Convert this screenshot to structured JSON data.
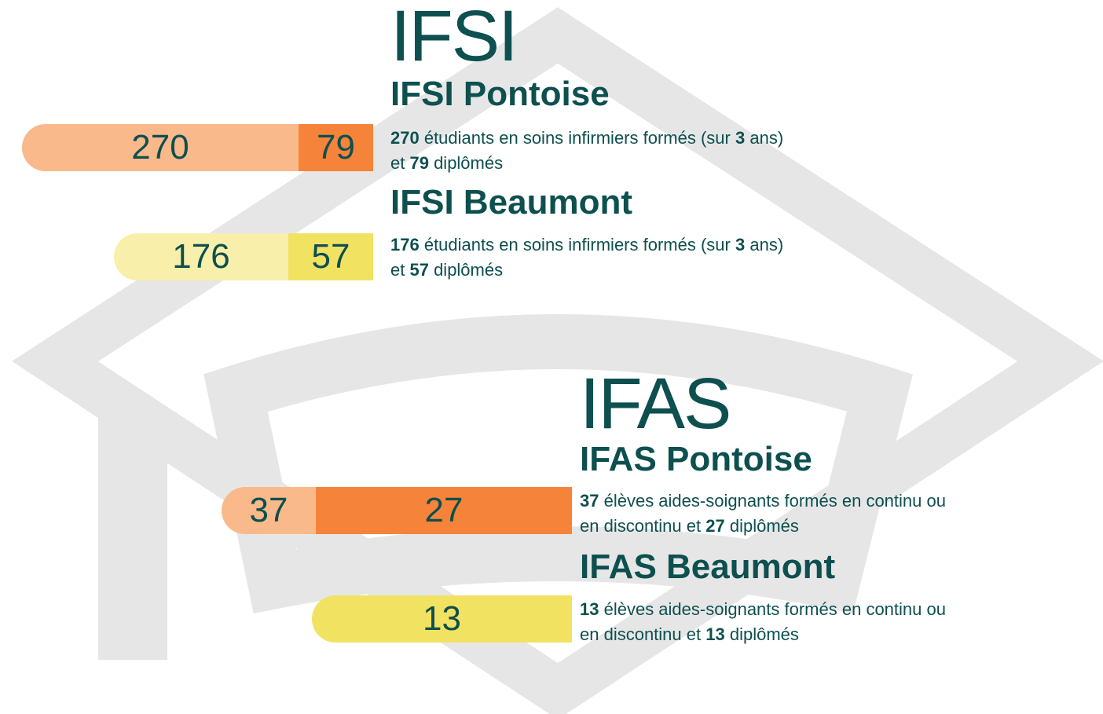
{
  "sections": [
    {
      "title": "IFSI",
      "programs": [
        {
          "name": "IFSI Pontoise",
          "segments": [
            {
              "value": 270,
              "color": "#f9b98b"
            },
            {
              "value": 79,
              "color": "#f5843a"
            }
          ],
          "lines": [
            [
              {
                "text": "270",
                "bold": true
              },
              {
                "text": " étudiants en soins infirmiers formés (sur "
              },
              {
                "text": "3",
                "bold": true
              },
              {
                "text": " ans)"
              }
            ],
            [
              {
                "text": "et "
              },
              {
                "text": "79",
                "bold": true
              },
              {
                "text": " diplômés"
              }
            ]
          ]
        },
        {
          "name": "IFSI Beaumont",
          "segments": [
            {
              "value": 176,
              "color": "#f8efaa"
            },
            {
              "value": 57,
              "color": "#f2e261"
            }
          ],
          "lines": [
            [
              {
                "text": "176",
                "bold": true
              },
              {
                "text": " étudiants en soins infirmiers formés (sur "
              },
              {
                "text": "3",
                "bold": true
              },
              {
                "text": " ans)"
              }
            ],
            [
              {
                "text": "et "
              },
              {
                "text": "57",
                "bold": true
              },
              {
                "text": " diplômés"
              }
            ]
          ]
        }
      ]
    },
    {
      "title": "IFAS",
      "programs": [
        {
          "name": "IFAS Pontoise",
          "segments": [
            {
              "value": 37,
              "color": "#f9b98b"
            },
            {
              "value": 27,
              "color": "#f5843a"
            }
          ],
          "lines": [
            [
              {
                "text": "37",
                "bold": true
              },
              {
                "text": " élèves aides-soignants formés en continu ou"
              }
            ],
            [
              {
                "text": "en discontinu et "
              },
              {
                "text": "27",
                "bold": true
              },
              {
                "text": " diplômés"
              }
            ]
          ]
        },
        {
          "name": "IFAS Beaumont",
          "segments": [
            {
              "value": 13,
              "color": "#f2e261"
            }
          ],
          "lines": [
            [
              {
                "text": "13",
                "bold": true
              },
              {
                "text": " élèves aides-soignants formés en continu ou"
              }
            ],
            [
              {
                "text": "en discontinu et "
              },
              {
                "text": "13",
                "bold": true
              },
              {
                "text": " diplômés"
              }
            ]
          ]
        }
      ]
    }
  ]
}
